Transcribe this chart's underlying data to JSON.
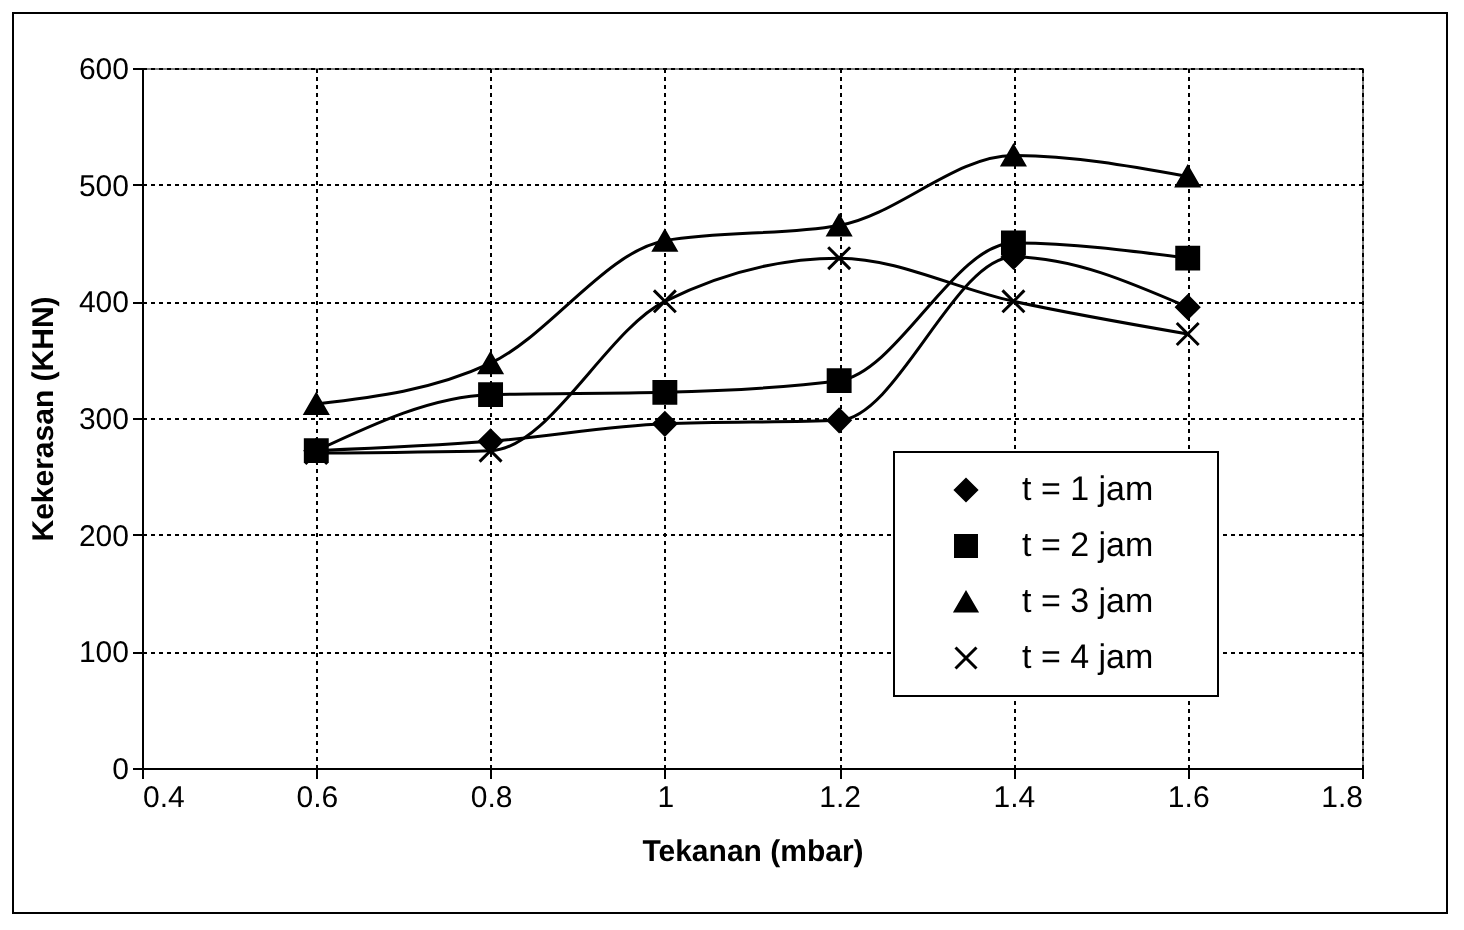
{
  "chart_data": {
    "type": "line",
    "xlabel": "Tekanan (mbar)",
    "ylabel": "Kekerasan (KHN)",
    "x": [
      0.6,
      0.8,
      1,
      1.2,
      1.4,
      1.6
    ],
    "series": [
      {
        "name": "t = 1 jam",
        "color": "#000000",
        "marker": "diamond",
        "values": [
          272,
          280,
          295,
          298,
          438,
          395
        ]
      },
      {
        "name": "t = 2 jam",
        "color": "#000000",
        "marker": "square",
        "values": [
          272,
          320,
          322,
          332,
          450,
          437
        ]
      },
      {
        "name": "t = 3 jam",
        "color": "#000000",
        "marker": "triangle",
        "values": [
          312,
          347,
          452,
          465,
          525,
          507
        ]
      },
      {
        "name": "t = 4 jam",
        "color": "#000000",
        "marker": "cross",
        "values": [
          270,
          272,
          400,
          437,
          400,
          372
        ]
      }
    ],
    "xlim": [
      0.4,
      1.8
    ],
    "xticks": [
      0.4,
      0.6,
      0.8,
      1,
      1.2,
      1.4,
      1.6,
      1.8
    ],
    "ylim": [
      0,
      600
    ],
    "yticks": [
      0,
      100,
      200,
      300,
      400,
      500,
      600
    ],
    "grid": true,
    "legend": "bottom right",
    "line_style": "solid"
  }
}
